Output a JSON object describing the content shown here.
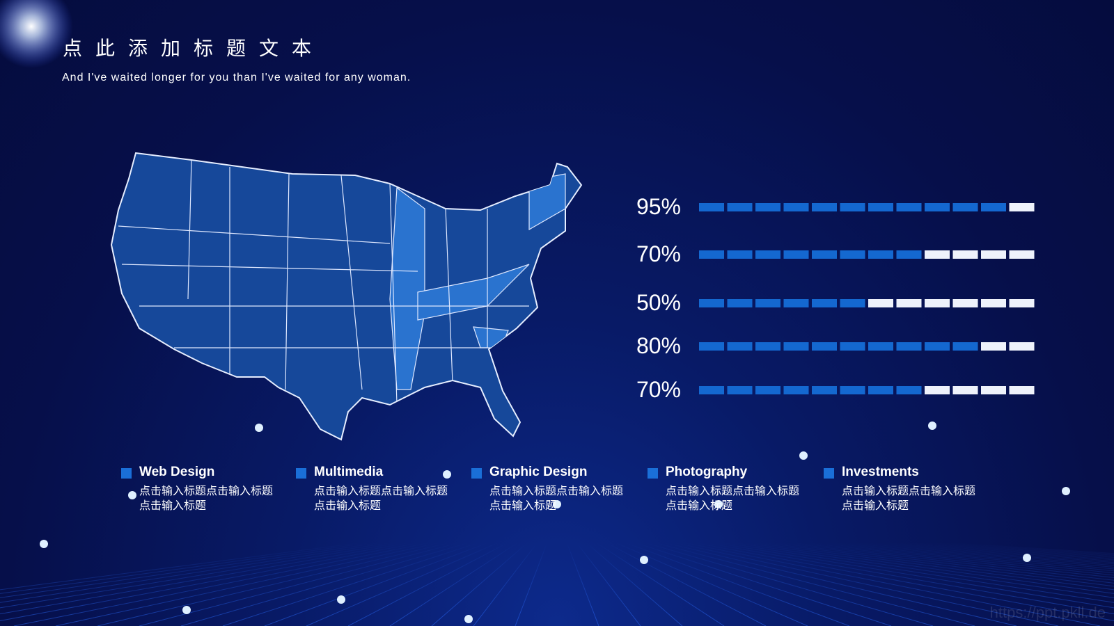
{
  "header": {
    "title": "点此添加标题文本",
    "subtitle": "And I've waited longer for you than I've waited for any woman."
  },
  "progress": [
    {
      "value": 95,
      "label": "95%"
    },
    {
      "value": 70,
      "label": "70%"
    },
    {
      "value": 50,
      "label": "50%"
    },
    {
      "value": 80,
      "label": "80%"
    },
    {
      "value": 70,
      "label": "70%"
    }
  ],
  "items": [
    {
      "title": "Web Design",
      "text": "点击输入标题点击输入标题点击输入标题"
    },
    {
      "title": "Multimedia",
      "text": "点击输入标题点击输入标题点击输入标题"
    },
    {
      "title": "Graphic Design",
      "text": "点击输入标题点击输入标题点击输入标题"
    },
    {
      "title": "Photography",
      "text": "点击输入标题点击输入标题点击输入标题"
    },
    {
      "title": "Investments",
      "text": "点击输入标题点击输入标题点击输入标题"
    }
  ],
  "watermark": "https://ppt.pkll.de"
}
